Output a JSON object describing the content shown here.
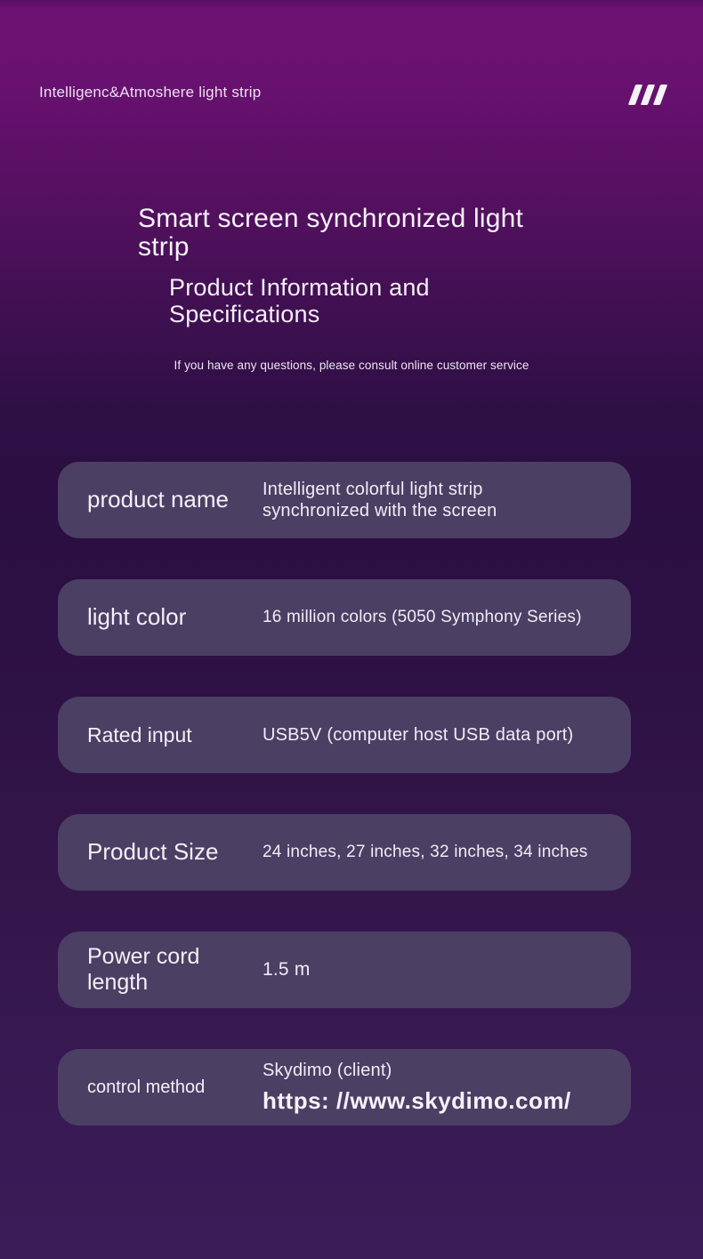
{
  "header": {
    "brand": "Intelligenc&Atmoshere light strip",
    "logo_icon": "triple-slash-icon"
  },
  "hero": {
    "title": "Smart screen synchronized light strip",
    "subtitle": "Product Information and Specifications",
    "note": "If you have any questions, please consult online customer service"
  },
  "spec_cards": [
    {
      "label": "product name",
      "value": "Intelligent colorful light strip synchronized with the screen"
    },
    {
      "label": "light color",
      "value": "16 million colors (5050 Symphony Series)"
    },
    {
      "label": "Rated input",
      "value": "USB5V (computer host USB data port)"
    },
    {
      "label": "Product Size",
      "value": "24 inches, 27 inches, 32 inches, 34 inches"
    },
    {
      "label": "Power cord length",
      "value": "1.5 m"
    },
    {
      "label": "control method",
      "value": "Skydimo (client)",
      "value_url": "https: //www.skydimo.com/"
    }
  ],
  "colors": {
    "background_top": "#6b1172",
    "background_middle": "#2b0e42",
    "background_bottom": "#3b1c58",
    "card_background": "#4b3f64",
    "text": "#f3eff6"
  }
}
